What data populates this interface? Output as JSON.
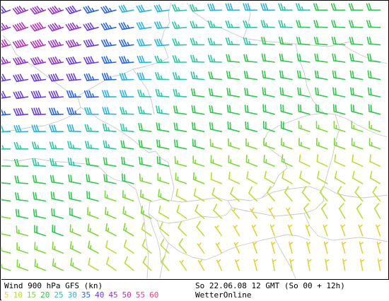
{
  "map": {
    "product": "Wind 900 hPa GFS (kn)",
    "run_info": "So 22.06.08 12 GMT (So 00 + 12h)",
    "provider": "WetterOnline",
    "colors": {
      "background": "#ffffff",
      "borders": "#c8c8c8",
      "frame": "#000000"
    }
  },
  "legend": {
    "items": [
      {
        "label": "5",
        "color": "#e0d23a"
      },
      {
        "label": "10",
        "color": "#b8dc3a"
      },
      {
        "label": "15",
        "color": "#7cd838"
      },
      {
        "label": "20",
        "color": "#2ec84a"
      },
      {
        "label": "25",
        "color": "#28c8a0"
      },
      {
        "label": "30",
        "color": "#28b4dc"
      },
      {
        "label": "35",
        "color": "#2864dc"
      },
      {
        "label": "40",
        "color": "#6a3cdc"
      },
      {
        "label": "45",
        "color": "#9632c8"
      },
      {
        "label": "50",
        "color": "#b432b4"
      },
      {
        "label": "55",
        "color": "#dc3cb4"
      },
      {
        "label": "60",
        "color": "#f03c78"
      }
    ]
  },
  "wind_field": {
    "cols": 22,
    "rows": 16,
    "direction_deg": [
      [
        250,
        250,
        250,
        250,
        252,
        255,
        255,
        260,
        260,
        262,
        265,
        265,
        268,
        270,
        270,
        270,
        270,
        270,
        270,
        270,
        270,
        270
      ],
      [
        252,
        252,
        252,
        252,
        255,
        255,
        258,
        260,
        262,
        265,
        265,
        268,
        270,
        270,
        270,
        272,
        272,
        272,
        272,
        272,
        272,
        272
      ],
      [
        255,
        255,
        255,
        258,
        258,
        260,
        262,
        262,
        265,
        265,
        268,
        270,
        270,
        272,
        272,
        275,
        275,
        275,
        275,
        275,
        275,
        275
      ],
      [
        258,
        258,
        258,
        260,
        260,
        262,
        265,
        265,
        268,
        268,
        270,
        272,
        272,
        275,
        275,
        278,
        278,
        278,
        278,
        278,
        278,
        278
      ],
      [
        260,
        260,
        262,
        262,
        265,
        265,
        268,
        268,
        270,
        272,
        272,
        275,
        275,
        278,
        278,
        280,
        280,
        280,
        280,
        280,
        280,
        280
      ],
      [
        262,
        262,
        265,
        265,
        268,
        268,
        270,
        270,
        272,
        275,
        275,
        278,
        278,
        280,
        280,
        282,
        282,
        282,
        282,
        282,
        282,
        282
      ],
      [
        265,
        265,
        268,
        268,
        270,
        270,
        272,
        272,
        275,
        278,
        278,
        280,
        280,
        282,
        282,
        285,
        285,
        285,
        285,
        285,
        285,
        285
      ],
      [
        268,
        268,
        270,
        270,
        272,
        272,
        275,
        275,
        278,
        280,
        280,
        282,
        282,
        285,
        285,
        288,
        288,
        288,
        288,
        288,
        288,
        288
      ],
      [
        270,
        270,
        272,
        272,
        275,
        275,
        278,
        278,
        280,
        282,
        282,
        285,
        285,
        288,
        288,
        290,
        290,
        290,
        290,
        290,
        290,
        290
      ],
      [
        272,
        272,
        275,
        275,
        278,
        278,
        280,
        282,
        282,
        285,
        285,
        288,
        290,
        290,
        292,
        292,
        295,
        295,
        295,
        295,
        295,
        295
      ],
      [
        275,
        275,
        278,
        278,
        280,
        282,
        282,
        285,
        285,
        288,
        290,
        292,
        292,
        295,
        298,
        300,
        300,
        300,
        300,
        300,
        300,
        300
      ],
      [
        278,
        278,
        280,
        282,
        282,
        285,
        288,
        290,
        292,
        295,
        298,
        300,
        305,
        310,
        315,
        320,
        320,
        320,
        320,
        320,
        320,
        320
      ],
      [
        280,
        282,
        282,
        285,
        288,
        290,
        292,
        295,
        298,
        300,
        305,
        310,
        315,
        320,
        325,
        330,
        330,
        330,
        330,
        330,
        330,
        330
      ],
      [
        282,
        285,
        288,
        290,
        292,
        295,
        298,
        300,
        305,
        310,
        315,
        320,
        325,
        330,
        335,
        340,
        340,
        340,
        340,
        340,
        340,
        340
      ],
      [
        285,
        288,
        290,
        292,
        295,
        298,
        300,
        305,
        310,
        315,
        320,
        325,
        330,
        335,
        340,
        345,
        345,
        345,
        345,
        345,
        345,
        345
      ],
      [
        288,
        290,
        292,
        295,
        298,
        300,
        305,
        310,
        315,
        320,
        325,
        330,
        335,
        340,
        345,
        350,
        350,
        350,
        350,
        350,
        350,
        350
      ]
    ],
    "speed_kn": [
      [
        40,
        45,
        45,
        45,
        40,
        35,
        35,
        30,
        30,
        30,
        25,
        25,
        30,
        30,
        30,
        30,
        25,
        25,
        20,
        20,
        20,
        20
      ],
      [
        45,
        50,
        50,
        45,
        45,
        40,
        35,
        35,
        30,
        30,
        25,
        25,
        25,
        25,
        25,
        25,
        25,
        20,
        20,
        20,
        20,
        20
      ],
      [
        50,
        50,
        50,
        45,
        45,
        40,
        35,
        35,
        30,
        30,
        25,
        25,
        25,
        25,
        25,
        20,
        20,
        20,
        20,
        20,
        20,
        20
      ],
      [
        45,
        45,
        45,
        45,
        40,
        40,
        35,
        35,
        30,
        25,
        25,
        25,
        25,
        20,
        20,
        20,
        20,
        20,
        20,
        20,
        20,
        20
      ],
      [
        40,
        40,
        40,
        40,
        40,
        35,
        35,
        30,
        30,
        25,
        25,
        25,
        20,
        20,
        20,
        20,
        20,
        20,
        20,
        20,
        20,
        20
      ],
      [
        40,
        40,
        40,
        40,
        35,
        35,
        30,
        30,
        25,
        25,
        25,
        20,
        20,
        20,
        20,
        20,
        20,
        20,
        20,
        20,
        20,
        20
      ],
      [
        35,
        40,
        40,
        35,
        35,
        30,
        30,
        25,
        25,
        25,
        20,
        20,
        20,
        20,
        20,
        20,
        20,
        20,
        20,
        20,
        20,
        20
      ],
      [
        30,
        30,
        30,
        30,
        30,
        25,
        25,
        25,
        20,
        20,
        20,
        20,
        20,
        20,
        20,
        20,
        20,
        15,
        15,
        15,
        15,
        15
      ],
      [
        25,
        25,
        25,
        25,
        25,
        25,
        25,
        20,
        20,
        20,
        20,
        20,
        15,
        15,
        15,
        15,
        15,
        15,
        15,
        15,
        15,
        15
      ],
      [
        20,
        20,
        25,
        25,
        25,
        20,
        20,
        20,
        20,
        20,
        15,
        15,
        15,
        15,
        15,
        15,
        15,
        10,
        10,
        10,
        10,
        10
      ],
      [
        20,
        20,
        20,
        20,
        20,
        20,
        20,
        20,
        15,
        15,
        15,
        15,
        10,
        10,
        10,
        10,
        10,
        10,
        10,
        10,
        10,
        10
      ],
      [
        20,
        20,
        20,
        20,
        20,
        20,
        15,
        15,
        15,
        15,
        10,
        10,
        10,
        10,
        10,
        10,
        10,
        10,
        10,
        10,
        10,
        10
      ],
      [
        15,
        20,
        20,
        20,
        20,
        15,
        15,
        15,
        15,
        10,
        10,
        10,
        10,
        5,
        5,
        5,
        5,
        10,
        10,
        10,
        10,
        10
      ],
      [
        15,
        15,
        20,
        20,
        15,
        15,
        15,
        15,
        10,
        10,
        10,
        10,
        5,
        5,
        5,
        5,
        5,
        5,
        5,
        5,
        5,
        5
      ],
      [
        15,
        15,
        15,
        15,
        15,
        15,
        10,
        10,
        10,
        10,
        10,
        5,
        5,
        5,
        5,
        5,
        5,
        5,
        5,
        5,
        5,
        5
      ],
      [
        15,
        15,
        15,
        15,
        15,
        10,
        10,
        10,
        10,
        10,
        5,
        5,
        5,
        5,
        5,
        5,
        5,
        5,
        5,
        5,
        5,
        5
      ]
    ]
  }
}
